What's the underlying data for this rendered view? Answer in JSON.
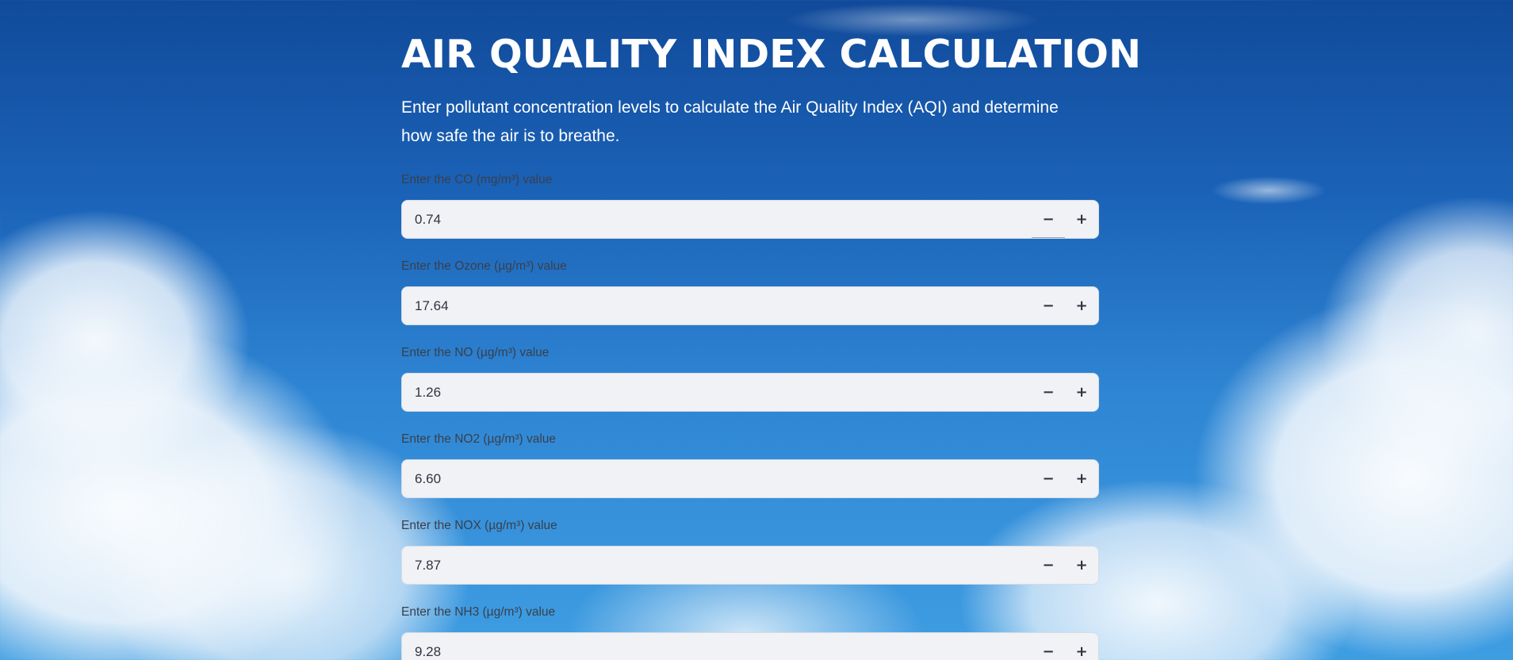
{
  "page": {
    "title": "AIR QUALITY INDEX CALCULATION",
    "subtitle": "Enter pollutant concentration levels to calculate the Air Quality Index (AQI) and determine how safe the air is to breathe."
  },
  "fields": [
    {
      "label": "Enter the CO (mg/m³) value",
      "value": "0.74"
    },
    {
      "label": "Enter the Ozone (µg/m³) value",
      "value": "17.64"
    },
    {
      "label": "Enter the NO (µg/m³) value",
      "value": "1.26"
    },
    {
      "label": "Enter the NO2 (µg/m³) value",
      "value": "6.60"
    },
    {
      "label": "Enter the NOX (µg/m³) value",
      "value": "7.87"
    },
    {
      "label": "Enter the NH3 (µg/m³) value",
      "value": "9.28"
    }
  ],
  "stepper": {
    "minus": "−",
    "plus": "+"
  },
  "icons": {
    "minus": "minus-icon",
    "plus": "plus-icon"
  },
  "colors": {
    "title": "#ffffff",
    "label": "#3a3f4b",
    "input_background": "#f0f2f6",
    "input_text": "#31333f",
    "sky": "#1b63b8"
  }
}
